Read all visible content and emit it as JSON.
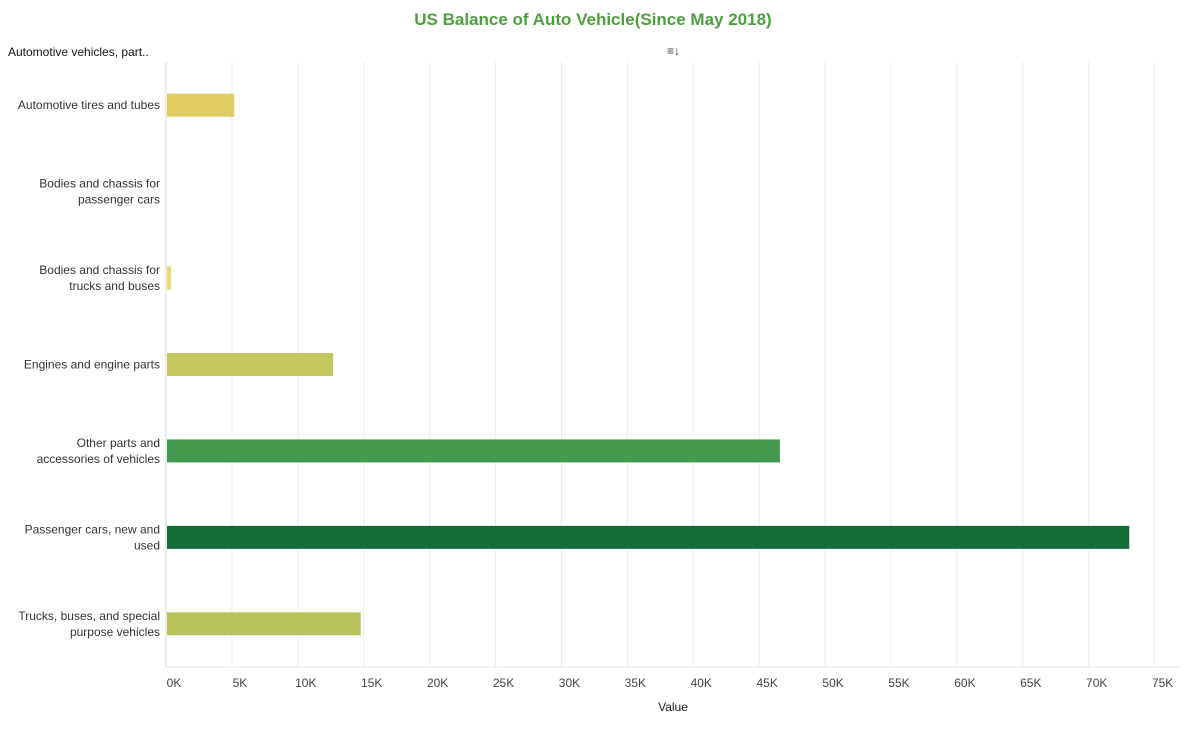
{
  "header": {
    "dimension_label": "Automotive vehicles, part..",
    "sort_icon": "sort-descending-icon"
  },
  "chart_data": {
    "type": "bar",
    "orientation": "horizontal",
    "title": "US Balance of Auto Vehicle(Since May 2018)",
    "xlabel": "Value",
    "ylabel": "",
    "xlim": [
      0,
      77000
    ],
    "xticks": [
      0,
      5000,
      10000,
      15000,
      20000,
      25000,
      30000,
      35000,
      40000,
      45000,
      50000,
      55000,
      60000,
      65000,
      70000,
      75000
    ],
    "xtick_labels": [
      "0K",
      "5K",
      "10K",
      "15K",
      "20K",
      "25K",
      "30K",
      "35K",
      "40K",
      "45K",
      "50K",
      "55K",
      "60K",
      "65K",
      "70K",
      "75K"
    ],
    "grid": true,
    "legend": "none",
    "categories": [
      [
        "Automotive tires and tubes"
      ],
      [
        "Bodies and chassis for",
        "passenger cars"
      ],
      [
        "Bodies and chassis for",
        "trucks and buses"
      ],
      [
        "Engines and engine parts"
      ],
      [
        "Other parts and",
        "accessories of vehicles"
      ],
      [
        "Passenger cars, new and",
        "used"
      ],
      [
        "Trucks, buses, and special",
        "purpose vehicles"
      ]
    ],
    "values": [
      5100,
      0,
      300,
      12600,
      46500,
      73000,
      14700
    ],
    "colors": [
      "#e0cc60",
      "#e8d872",
      "#ecd96a",
      "#c4c75e",
      "#45994f",
      "#146c37",
      "#b8c35e"
    ]
  }
}
